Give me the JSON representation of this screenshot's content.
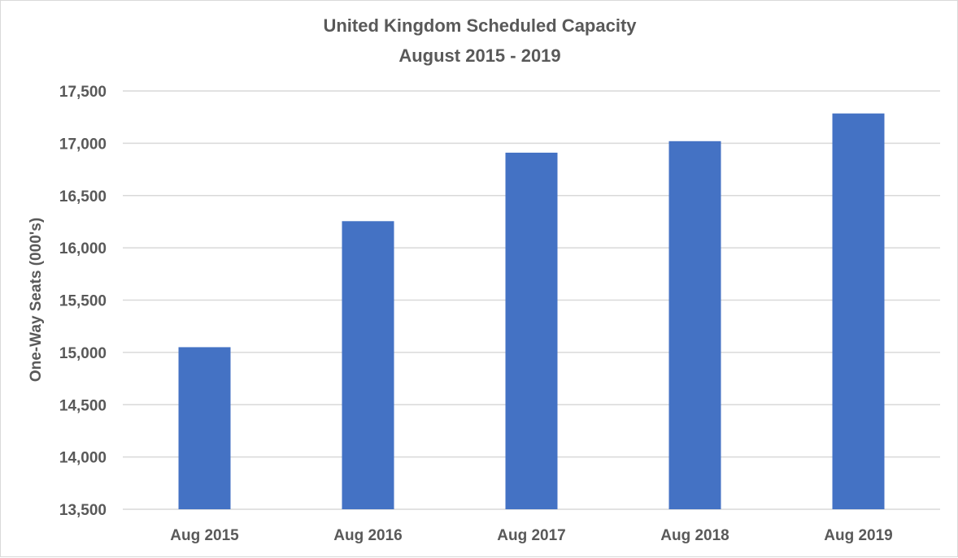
{
  "chart_data": {
    "type": "bar",
    "title": "United Kingdom Scheduled Capacity",
    "subtitle": "August 2015 - 2019",
    "xlabel": "",
    "ylabel": "One-Way Seats (000's)",
    "categories": [
      "Aug 2015",
      "Aug 2016",
      "Aug 2017",
      "Aug 2018",
      "Aug 2019"
    ],
    "values": [
      15050,
      16255,
      16910,
      17020,
      17285
    ],
    "ylim": [
      13500,
      17500
    ],
    "yticks": [
      13500,
      14000,
      14500,
      15000,
      15500,
      16000,
      16500,
      17000,
      17500
    ],
    "ytick_labels": [
      "13,500",
      "14,000",
      "14,500",
      "15,000",
      "15,500",
      "16,000",
      "16,500",
      "17,000",
      "17,500"
    ],
    "grid": true,
    "legend": "none",
    "bar_color": "#4472C4",
    "grid_color": "#D9D9D9"
  }
}
